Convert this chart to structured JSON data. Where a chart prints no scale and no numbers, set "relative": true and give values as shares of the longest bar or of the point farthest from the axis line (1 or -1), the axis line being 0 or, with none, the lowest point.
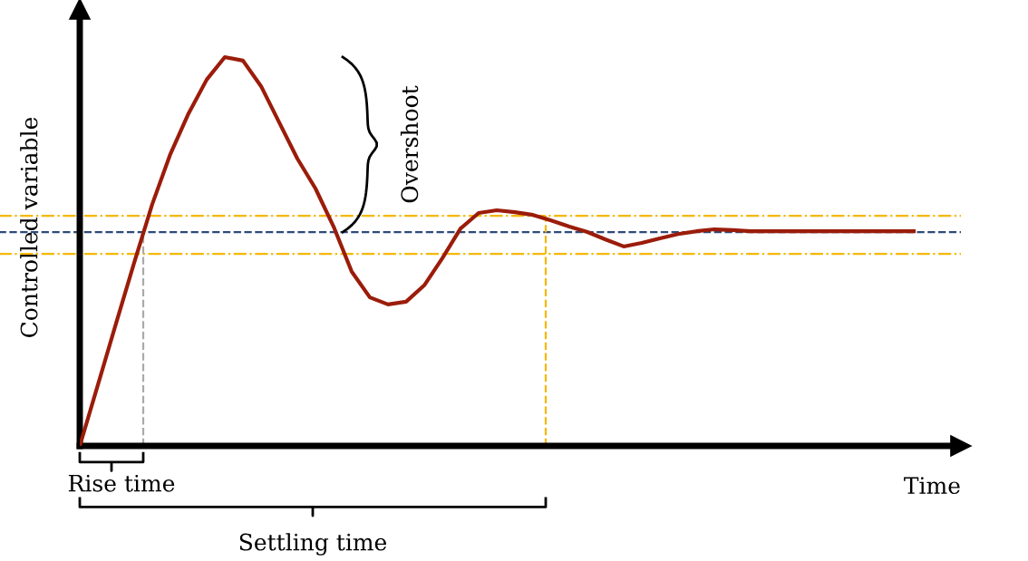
{
  "chart_data": {
    "type": "line",
    "relative": true,
    "xlabel": "Time",
    "ylabel": "Controlled variable",
    "categories": [
      null,
      null,
      null,
      null,
      null,
      null,
      null,
      null,
      null,
      null,
      null,
      null,
      null,
      null,
      null,
      null,
      null,
      null,
      null,
      null,
      null,
      null,
      null,
      null,
      null,
      null,
      null,
      null,
      null,
      null,
      null,
      null,
      null,
      null,
      null,
      null,
      null,
      null,
      null,
      null,
      null,
      null,
      null,
      null,
      null,
      null,
      null
    ],
    "series": [
      {
        "color": "#9b1c0a",
        "values": [
          0,
          0.157,
          0.315,
          0.471,
          0.622,
          0.751,
          0.855,
          0.942,
          1,
          0.991,
          0.925,
          0.832,
          0.739,
          0.662,
          0.564,
          0.448,
          0.382,
          0.364,
          0.371,
          0.413,
          0.483,
          0.559,
          0.599,
          0.606,
          0.601,
          0.594,
          0.58,
          0.564,
          0.55,
          0.531,
          0.513,
          0.522,
          0.534,
          0.545,
          0.552,
          0.557,
          0.555,
          0.552,
          0.552,
          0.552,
          0.552,
          0.552,
          0.552,
          0.552,
          0.552,
          0.552,
          0.552
        ]
      }
    ],
    "ref_lines": [
      {
        "axis": "y",
        "value": 0.55,
        "color": "#2e4a7a",
        "line_style": "dashed"
      },
      {
        "axis": "y",
        "value": 0.592,
        "color": "#f5b800",
        "line_style": "dashdot"
      },
      {
        "axis": "y",
        "value": 0.494,
        "color": "#f5b800",
        "line_style": "dashdot"
      }
    ],
    "annotations": [
      "Overshoot",
      "Rise time",
      "Settling time"
    ],
    "marker": "none",
    "line_style": "solid"
  }
}
